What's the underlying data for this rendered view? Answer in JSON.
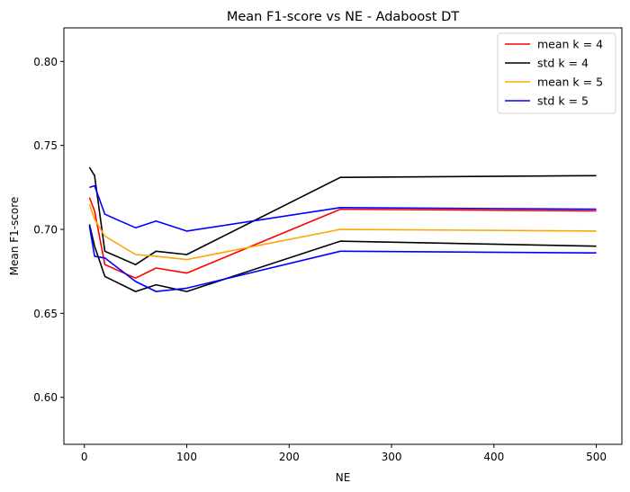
{
  "chart_data": {
    "type": "line",
    "title": "Mean F1-score vs NE - Adaboost DT",
    "xlabel": "NE",
    "ylabel": "Mean F1-score",
    "xlim": [
      -20,
      525
    ],
    "ylim": [
      0.572,
      0.82
    ],
    "xticks": [
      0,
      100,
      200,
      300,
      400,
      500
    ],
    "yticks": [
      0.6,
      0.65,
      0.7,
      0.75,
      0.8
    ],
    "xtick_labels": [
      "0",
      "100",
      "200",
      "300",
      "400",
      "500"
    ],
    "ytick_labels": [
      "0.60",
      "0.65",
      "0.70",
      "0.75",
      "0.80"
    ],
    "grid": false,
    "legend_position": "top-right",
    "legend": [
      "mean k = 4",
      "std k = 4",
      "mean k = 5",
      "std k = 5"
    ],
    "series": [
      {
        "name": "mean k = 4",
        "color": "#ff0000",
        "points": [
          [
            5,
            0.719
          ],
          [
            10,
            0.711
          ],
          [
            20,
            0.679
          ],
          [
            50,
            0.671
          ],
          [
            70,
            0.677
          ],
          [
            100,
            0.674
          ],
          [
            250,
            0.712
          ],
          [
            500,
            0.711
          ]
        ]
      },
      {
        "name": "std k = 4",
        "color": "#000000",
        "points": [
          [
            5,
            0.737
          ],
          [
            10,
            0.732
          ],
          [
            20,
            0.687
          ],
          [
            50,
            0.679
          ],
          [
            70,
            0.687
          ],
          [
            100,
            0.685
          ],
          [
            250,
            0.731
          ],
          [
            500,
            0.732
          ]
        ]
      },
      {
        "name": "std k = 4",
        "color": "#000000",
        "points": [
          [
            5,
            0.703
          ],
          [
            10,
            0.69
          ],
          [
            20,
            0.672
          ],
          [
            50,
            0.663
          ],
          [
            70,
            0.667
          ],
          [
            100,
            0.663
          ],
          [
            250,
            0.693
          ],
          [
            500,
            0.69
          ]
        ]
      },
      {
        "name": "mean k = 5",
        "color": "#ffa500",
        "points": [
          [
            5,
            0.715
          ],
          [
            10,
            0.706
          ],
          [
            20,
            0.696
          ],
          [
            50,
            0.685
          ],
          [
            70,
            0.684
          ],
          [
            100,
            0.682
          ],
          [
            250,
            0.7
          ],
          [
            500,
            0.699
          ]
        ]
      },
      {
        "name": "std k = 5",
        "color": "#0000ff",
        "points": [
          [
            5,
            0.725
          ],
          [
            10,
            0.726
          ],
          [
            20,
            0.709
          ],
          [
            50,
            0.701
          ],
          [
            70,
            0.705
          ],
          [
            100,
            0.699
          ],
          [
            250,
            0.713
          ],
          [
            500,
            0.712
          ]
        ]
      },
      {
        "name": "std k = 5",
        "color": "#0000ff",
        "points": [
          [
            5,
            0.702
          ],
          [
            10,
            0.684
          ],
          [
            20,
            0.683
          ],
          [
            50,
            0.669
          ],
          [
            70,
            0.663
          ],
          [
            100,
            0.665
          ],
          [
            250,
            0.687
          ],
          [
            500,
            0.686
          ]
        ]
      }
    ]
  }
}
